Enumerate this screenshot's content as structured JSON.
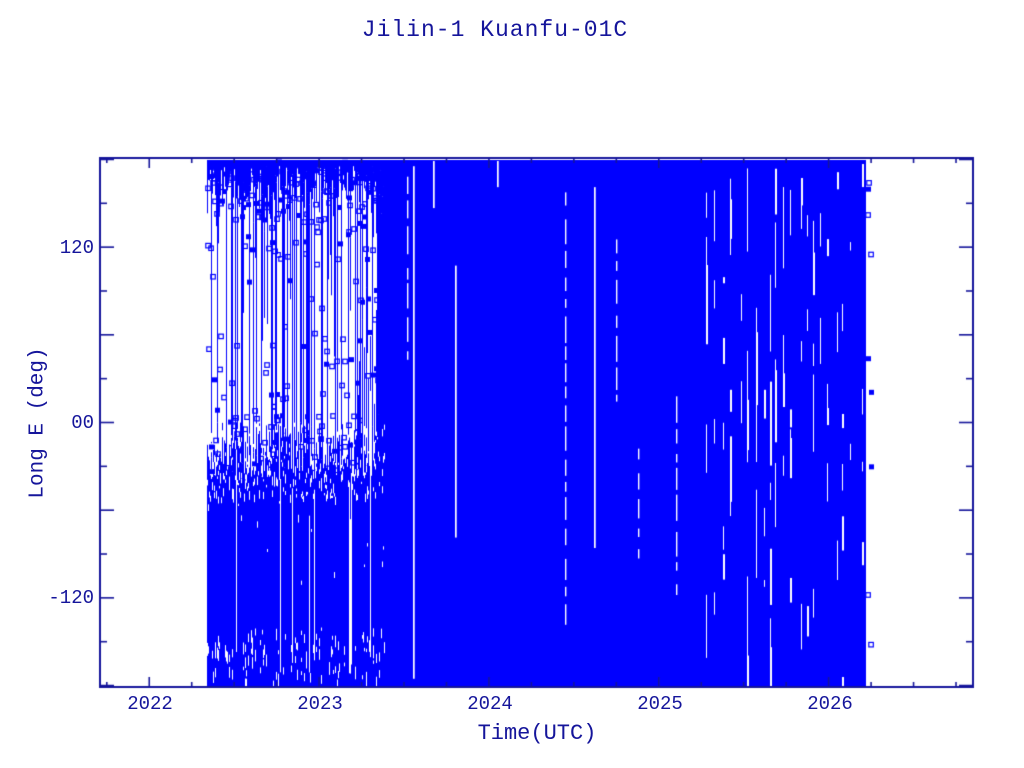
{
  "colors": {
    "data_blue": "#0000ff",
    "frame_blue": "#15159b",
    "background": "#ffffff"
  },
  "chart_data": {
    "type": "scatter",
    "title": "Jilin-1 Kuanfu-01C",
    "xlabel": "Time(UTC)",
    "ylabel": "Long E (deg)",
    "xlim": [
      2021.71,
      2026.85
    ],
    "ylim": [
      -181,
      181
    ],
    "grid": false,
    "legend": null,
    "marker": "open-square",
    "x_major_ticks": [
      2022,
      2023,
      2024,
      2025,
      2026
    ],
    "x_tick_labels": [
      "2022",
      "2023",
      "2024",
      "2025",
      "2026"
    ],
    "x_minor_step": 0.25,
    "y_major_ticks": [
      -180,
      -120,
      -60,
      0,
      60,
      120,
      180
    ],
    "y_minor_ticks": [
      -150,
      -90,
      -30,
      30,
      90,
      150
    ],
    "y_labeled_ticks": [
      {
        "value": 120,
        "label": "120"
      },
      {
        "value": 0,
        "label": "00"
      },
      {
        "value": -120,
        "label": "-120"
      }
    ],
    "seed": 7,
    "segments": {
      "sparse": {
        "t_start": 2022.34,
        "t_end": 2023.38,
        "top_band_deg": [
          140,
          181
        ],
        "mid_band_deg": [
          0,
          140
        ],
        "mid_line_prob": 0.2,
        "lower_block_deg": [
          0,
          -181
        ],
        "lower_speckle_band_deg": [
          0,
          -48
        ],
        "bottom_speckle_band_deg": [
          -140,
          -181
        ]
      },
      "dense": {
        "t_start": 2023.38,
        "t_end": 2026.22,
        "partial_gaps": [
          {
            "t": 2023.52,
            "f0": 0.03,
            "f1": 0.38,
            "dashed": true
          },
          {
            "t": 2023.555,
            "f0": 0.01,
            "f1": 0.99,
            "dashed": false
          },
          {
            "t": 2023.67,
            "f0": 0.0,
            "f1": 0.09,
            "dashed": false
          },
          {
            "t": 2023.8,
            "f0": 0.2,
            "f1": 0.72,
            "dashed": false
          },
          {
            "t": 2024.05,
            "f0": 0.0,
            "f1": 0.05,
            "dashed": false
          },
          {
            "t": 2024.45,
            "f0": 0.06,
            "f1": 0.9,
            "dashed": true
          },
          {
            "t": 2024.62,
            "f0": 0.05,
            "f1": 0.74,
            "dashed": false
          },
          {
            "t": 2024.75,
            "f0": 0.15,
            "f1": 0.46,
            "dashed": true
          },
          {
            "t": 2024.88,
            "f0": 0.55,
            "f1": 0.76,
            "dashed": true
          },
          {
            "t": 2025.1,
            "f0": 0.45,
            "f1": 0.85,
            "dashed": true
          }
        ],
        "streak_region": {
          "t_start": 2025.22,
          "t_end": 2026.2
        }
      },
      "trailing_markers": {
        "t": 2026.23,
        "degrees": [
          164,
          160,
          142,
          115,
          44,
          21,
          -30,
          -118,
          -152
        ]
      }
    }
  }
}
